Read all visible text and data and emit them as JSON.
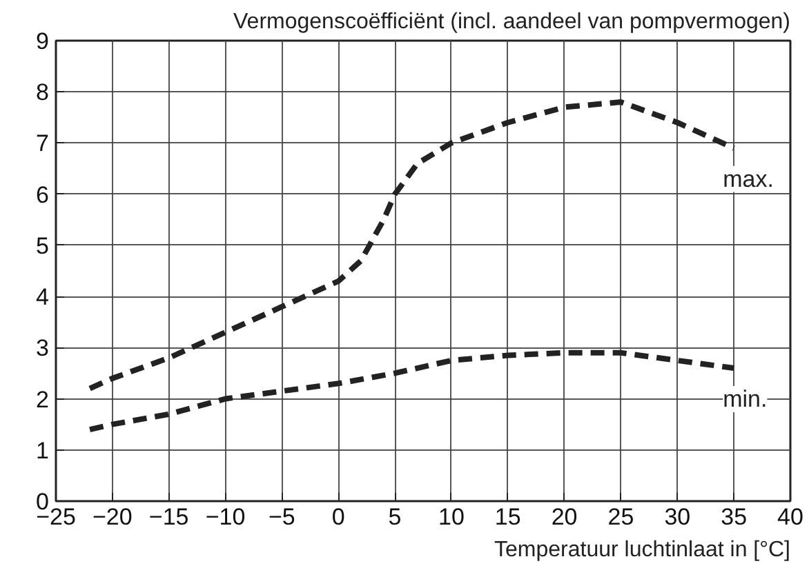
{
  "chart_data": {
    "type": "line",
    "title": "Vermogenscoëfficiënt (incl. aandeel van pompvermogen)",
    "xlabel": "Temperatuur luchtinlaat in [°C]",
    "x": [
      -22,
      -20,
      -15,
      -10,
      -5,
      0,
      2,
      4,
      5,
      7,
      10,
      15,
      20,
      25,
      30,
      35
    ],
    "series": [
      {
        "name": "max.",
        "color": "#222222",
        "values": [
          2.2,
          2.4,
          2.8,
          3.3,
          3.8,
          4.3,
          4.7,
          5.5,
          6.0,
          6.6,
          7.0,
          7.4,
          7.7,
          7.8,
          7.4,
          6.9
        ]
      },
      {
        "name": "min.",
        "color": "#222222",
        "x": [
          -22,
          -20,
          -15,
          -10,
          -5,
          0,
          5,
          10,
          15,
          20,
          25,
          30,
          35
        ],
        "values": [
          1.4,
          1.5,
          1.7,
          2.0,
          2.15,
          2.3,
          2.5,
          2.75,
          2.85,
          2.9,
          2.9,
          2.75,
          2.6
        ]
      }
    ],
    "xlim": [
      -25,
      40
    ],
    "ylim": [
      0,
      9
    ],
    "xticks": [
      -25,
      -20,
      -15,
      -10,
      -5,
      0,
      5,
      10,
      15,
      20,
      25,
      30,
      35,
      40
    ],
    "yticks": [
      0,
      1,
      2,
      3,
      4,
      5,
      6,
      7,
      8,
      9
    ],
    "grid": true,
    "line_style": "dashed"
  }
}
